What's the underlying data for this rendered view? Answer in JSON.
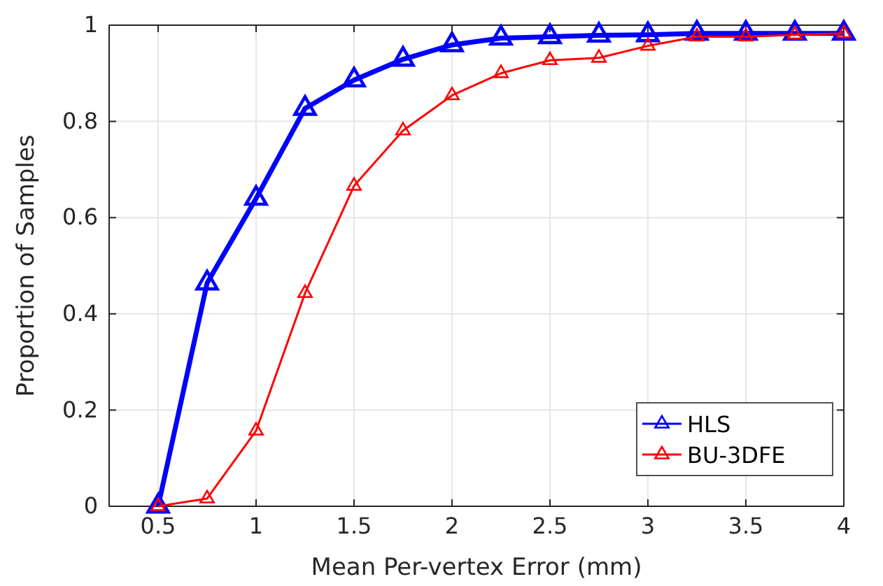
{
  "chart_data": {
    "type": "line",
    "xlabel": "Mean Per-vertex Error (mm)",
    "ylabel": "Proportion of Samples",
    "x": [
      0.5,
      0.75,
      1,
      1.25,
      1.5,
      1.75,
      2,
      2.25,
      2.5,
      2.75,
      3,
      3.25,
      3.5,
      3.75,
      4
    ],
    "series": [
      {
        "name": "HLS",
        "color": "#0000ff",
        "values": [
          0,
          0.464,
          0.64,
          0.827,
          0.886,
          0.929,
          0.959,
          0.973,
          0.976,
          0.979,
          0.98,
          0.983,
          0.983,
          0.983,
          0.983
        ]
      },
      {
        "name": "BU-3DFE",
        "color": "#ff0000",
        "values": [
          0,
          0.016,
          0.157,
          0.443,
          0.666,
          0.781,
          0.854,
          0.9,
          0.927,
          0.932,
          0.957,
          0.976,
          0.976,
          0.98,
          0.983
        ]
      }
    ],
    "xlim": [
      0.25,
      4
    ],
    "xticks": [
      0.5,
      1,
      1.5,
      2,
      2.5,
      3,
      3.5,
      4
    ],
    "ylim": [
      0,
      1
    ],
    "yticks": [
      0,
      0.2,
      0.4,
      0.6,
      0.8,
      1
    ],
    "grid": true,
    "legend": "bottom right",
    "marker": "triangle",
    "line_style": "solid"
  }
}
